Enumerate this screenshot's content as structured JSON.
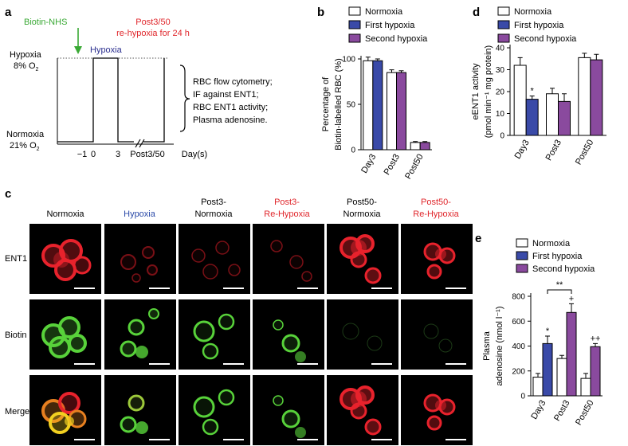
{
  "panels": {
    "a": "a",
    "b": "b",
    "c": "c",
    "d": "d",
    "e": "e"
  },
  "panel_a": {
    "biotin_label": "Biotin-NHS",
    "hypoxia_label": "Hypoxia",
    "re_hypoxia_line1": "Post3/50",
    "re_hypoxia_line2": "re-hypoxia for 24 h",
    "y_top_line1": "Hypoxia",
    "y_top_line2": "8% O",
    "y_top_sub": "2",
    "y_bottom_line1": "Normoxia",
    "y_bottom_line2": "21% O",
    "y_bottom_sub": "2",
    "x_ticks": [
      "−1",
      "0",
      "3",
      "Post3/50"
    ],
    "x_unit": "Day(s)",
    "bracket_lines": [
      "RBC flow cytometry;",
      "IF against ENT1;",
      "RBC ENT1 activity;",
      "Plasma adenosine."
    ],
    "colors": {
      "biotin": "#3aa935",
      "hypoxia": "#2b2f8f",
      "re_hypoxia": "#e0262b"
    }
  },
  "legend": {
    "normoxia": "Normoxia",
    "first_hypoxia": "First hypoxia",
    "second_hypoxia": "Second hypoxia"
  },
  "series_colors": {
    "normoxia": "#ffffff",
    "first_hypoxia": "#3a4aa8",
    "second_hypoxia": "#8a4a9e"
  },
  "chart_data": [
    {
      "panel": "b",
      "type": "bar",
      "ylabel_line1": "Percentage of",
      "ylabel_line2": "Biotin-labelled RBC (%)",
      "ylim": [
        0,
        100
      ],
      "yticks": [
        0,
        50,
        100
      ],
      "groups": [
        {
          "category": "Day3",
          "bars": [
            {
              "series": "normoxia",
              "value": 98,
              "err": 4
            },
            {
              "series": "first_hypoxia",
              "value": 98,
              "err": 2
            }
          ]
        },
        {
          "category": "Post3",
          "bars": [
            {
              "series": "normoxia",
              "value": 85,
              "err": 3
            },
            {
              "series": "second_hypoxia",
              "value": 85,
              "err": 2
            }
          ]
        },
        {
          "category": "Post50",
          "bars": [
            {
              "series": "normoxia",
              "value": 8,
              "err": 1
            },
            {
              "series": "second_hypoxia",
              "value": 8,
              "err": 1
            }
          ]
        }
      ]
    },
    {
      "panel": "d",
      "type": "bar",
      "ylabel_line1": "eENT1 activity",
      "ylabel_line2": "(pmol min⁻¹ mg protein)",
      "ylim": [
        0,
        40
      ],
      "yticks": [
        0,
        10,
        20,
        30,
        40
      ],
      "groups": [
        {
          "category": "Day3",
          "bars": [
            {
              "series": "normoxia",
              "value": 32,
              "err": 3.5
            },
            {
              "series": "first_hypoxia",
              "value": 16.5,
              "err": 1.5,
              "sig": "*"
            }
          ]
        },
        {
          "category": "Post3",
          "bars": [
            {
              "series": "normoxia",
              "value": 19,
              "err": 2.5
            },
            {
              "series": "second_hypoxia",
              "value": 15.5,
              "err": 3.5
            }
          ]
        },
        {
          "category": "Post50",
          "bars": [
            {
              "series": "normoxia",
              "value": 35.5,
              "err": 2
            },
            {
              "series": "second_hypoxia",
              "value": 34.5,
              "err": 2.5
            }
          ]
        }
      ]
    },
    {
      "panel": "e",
      "type": "bar",
      "ylabel_line1": "Plasma",
      "ylabel_line2": "adenosine (nmol l⁻¹)",
      "ylim": [
        0,
        800
      ],
      "yticks": [
        0,
        200,
        400,
        600,
        800
      ],
      "bracket": {
        "from": "Day3",
        "to": "Post3",
        "label": "**"
      },
      "groups": [
        {
          "category": "Day3",
          "bars": [
            {
              "series": "normoxia",
              "value": 150,
              "err": 30
            },
            {
              "series": "first_hypoxia",
              "value": 420,
              "err": 60,
              "sig": "*"
            }
          ]
        },
        {
          "category": "Post3",
          "bars": [
            {
              "series": "normoxia",
              "value": 300,
              "err": 25
            },
            {
              "series": "second_hypoxia",
              "value": 670,
              "err": 70,
              "sig": "+"
            }
          ]
        },
        {
          "category": "Post50",
          "bars": [
            {
              "series": "normoxia",
              "value": 140,
              "err": 40
            },
            {
              "series": "second_hypoxia",
              "value": 395,
              "err": 25,
              "sig": "++"
            }
          ]
        }
      ]
    }
  ],
  "panel_c": {
    "columns": [
      {
        "line1": "Normoxia",
        "line2": "",
        "color": "#000000"
      },
      {
        "line1": "Hypoxia",
        "line2": "",
        "color": "#2b4aa8"
      },
      {
        "line1": "Post3-",
        "line2": "Normoxia",
        "color": "#000000"
      },
      {
        "line1": "Post3-",
        "line2": "Re-Hypoxia",
        "color": "#e0262b"
      },
      {
        "line1": "Post50-",
        "line2": "Normoxia",
        "color": "#000000"
      },
      {
        "line1": "Post50-",
        "line2": "Re-Hypoxia",
        "color": "#e0262b"
      }
    ],
    "rows": [
      "ENT1",
      "Biotin",
      "Merge"
    ]
  }
}
